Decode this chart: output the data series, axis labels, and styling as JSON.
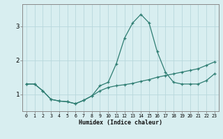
{
  "xlabel": "Humidex (Indice chaleur)",
  "x": [
    0,
    1,
    2,
    3,
    4,
    5,
    6,
    7,
    8,
    9,
    10,
    11,
    12,
    13,
    14,
    15,
    16,
    17,
    18,
    19,
    20,
    21,
    22,
    23
  ],
  "line1": [
    1.3,
    1.3,
    1.1,
    0.85,
    0.8,
    0.78,
    0.72,
    0.82,
    0.95,
    1.25,
    1.35,
    1.9,
    2.65,
    3.1,
    3.35,
    3.1,
    2.25,
    1.65,
    1.35,
    1.3,
    1.3,
    1.3,
    1.4,
    1.6
  ],
  "line2": [
    1.3,
    1.3,
    1.1,
    0.85,
    0.8,
    0.78,
    0.72,
    0.82,
    0.95,
    1.1,
    1.2,
    1.25,
    1.28,
    1.32,
    1.38,
    1.43,
    1.5,
    1.55,
    1.6,
    1.65,
    1.7,
    1.75,
    1.85,
    1.95
  ],
  "line_color": "#2e7d72",
  "bg_color": "#d8eef0",
  "grid_color": "#b8d8dc",
  "ylim": [
    0.5,
    3.65
  ],
  "yticks": [
    1,
    2,
    3
  ],
  "xlim": [
    -0.5,
    23.5
  ]
}
